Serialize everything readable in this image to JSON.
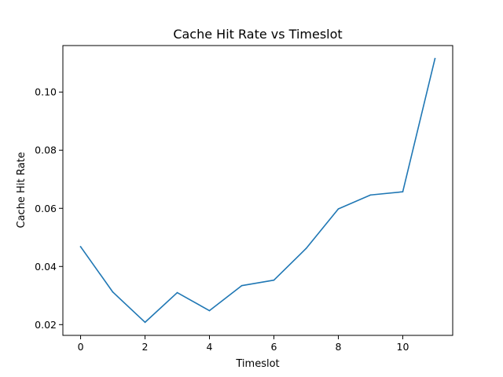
{
  "chart_data": {
    "type": "line",
    "title": "Cache Hit Rate vs Timeslot",
    "xlabel": "Timeslot",
    "ylabel": "Cache Hit Rate",
    "x": [
      0,
      1,
      2,
      3,
      4,
      5,
      6,
      7,
      8,
      9,
      10,
      11
    ],
    "series": [
      {
        "name": "",
        "color": "#1f77b4",
        "values": [
          0.0468,
          0.0312,
          0.0208,
          0.031,
          0.0248,
          0.0334,
          0.0353,
          0.0462,
          0.0598,
          0.0646,
          0.0657,
          0.1115
        ]
      }
    ],
    "xlim": [
      -0.55,
      11.55
    ],
    "ylim": [
      0.0163,
      0.116
    ],
    "xticks": [
      0,
      2,
      4,
      6,
      8,
      10
    ],
    "xtick_labels": [
      "0",
      "2",
      "4",
      "6",
      "8",
      "10"
    ],
    "yticks": [
      0.02,
      0.04,
      0.06,
      0.08,
      0.1
    ],
    "ytick_labels": [
      "0.02",
      "0.04",
      "0.06",
      "0.08",
      "0.10"
    ],
    "grid": false,
    "legend": "none"
  }
}
